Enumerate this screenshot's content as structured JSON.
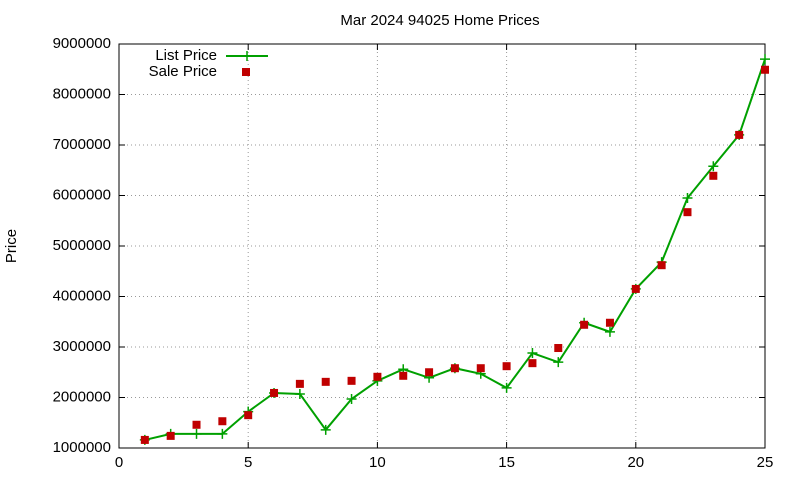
{
  "chart_data": {
    "type": "line",
    "title": "Mar 2024 94025 Home Prices",
    "y_label": "Price",
    "x": [
      1,
      2,
      3,
      4,
      5,
      6,
      7,
      8,
      9,
      10,
      11,
      12,
      13,
      14,
      15,
      16,
      17,
      18,
      19,
      20,
      21,
      22,
      23,
      24,
      25
    ],
    "series": [
      {
        "name": "List Price",
        "color": "#00a000",
        "mode": "linespoints",
        "values": [
          1160000,
          1280000,
          1280000,
          1280000,
          1720000,
          2090000,
          2070000,
          1360000,
          1970000,
          2330000,
          2560000,
          2390000,
          2580000,
          2470000,
          2190000,
          2880000,
          2700000,
          3480000,
          3300000,
          4150000,
          4680000,
          5950000,
          6580000,
          7200000,
          8700000
        ]
      },
      {
        "name": "Sale Price",
        "color": "#c00000",
        "mode": "points",
        "values": [
          1160000,
          1240000,
          1460000,
          1530000,
          1650000,
          2090000,
          2270000,
          2310000,
          2330000,
          2410000,
          2430000,
          2500000,
          2580000,
          2580000,
          2620000,
          2680000,
          2980000,
          3440000,
          3480000,
          4150000,
          4620000,
          5670000,
          6390000,
          7200000,
          8490000
        ]
      }
    ],
    "xlim": [
      0,
      25
    ],
    "xticks": [
      0,
      5,
      10,
      15,
      20,
      25
    ],
    "ylim": [
      1000000,
      9000000
    ],
    "yticks": [
      1000000,
      2000000,
      3000000,
      4000000,
      5000000,
      6000000,
      7000000,
      8000000,
      9000000
    ],
    "grid": true,
    "legend": "top-left"
  }
}
